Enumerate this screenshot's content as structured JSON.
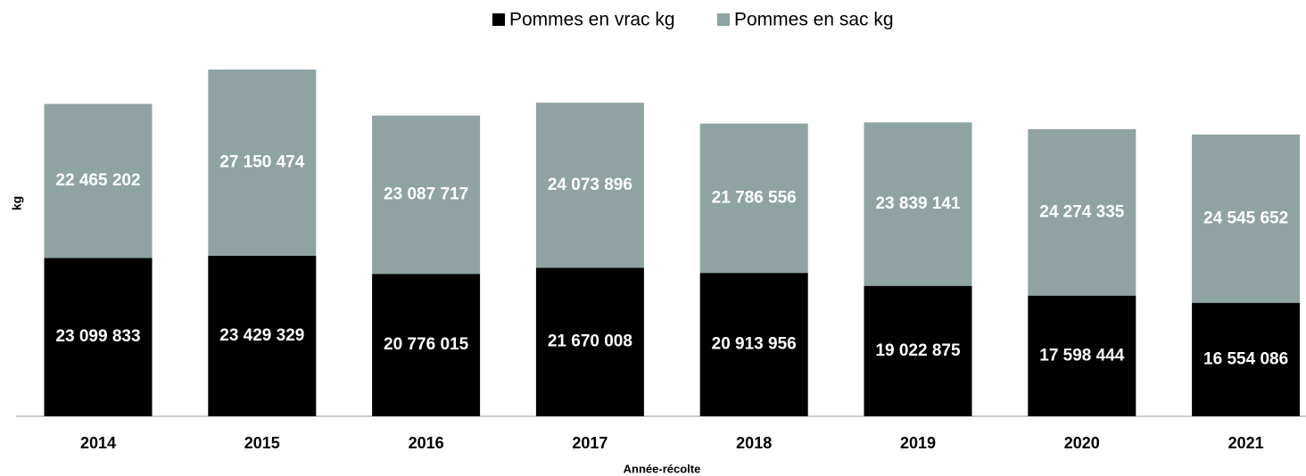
{
  "chart_data": {
    "type": "stacked_bar",
    "x_label": "Année-récolte",
    "y_label": "kg",
    "categories": [
      "2014",
      "2015",
      "2016",
      "2017",
      "2018",
      "2019",
      "2020",
      "2021"
    ],
    "series": [
      {
        "name": "Pommes en vrac kg",
        "color": "#000000",
        "values": [
          23099833,
          23429329,
          20776015,
          21670008,
          20913956,
          19022875,
          17598444,
          16554086
        ],
        "value_labels": [
          "23 099 833",
          "23 429 329",
          "20 776 015",
          "21 670 008",
          "20 913 956",
          "19 022 875",
          "17 598 444",
          "16 554 086"
        ]
      },
      {
        "name": "Pommes en sac kg",
        "color": "#8fa3a3",
        "values": [
          22465202,
          27150474,
          23087717,
          24073896,
          21786556,
          23839141,
          24274335,
          24545652
        ],
        "value_labels": [
          "22 465 202",
          "27 150 474",
          "23 087 717",
          "24 073 896",
          "21 786 556",
          "23 839 141",
          "24 274 335",
          "24 545 652"
        ]
      }
    ],
    "legend": "top",
    "grid": false
  }
}
